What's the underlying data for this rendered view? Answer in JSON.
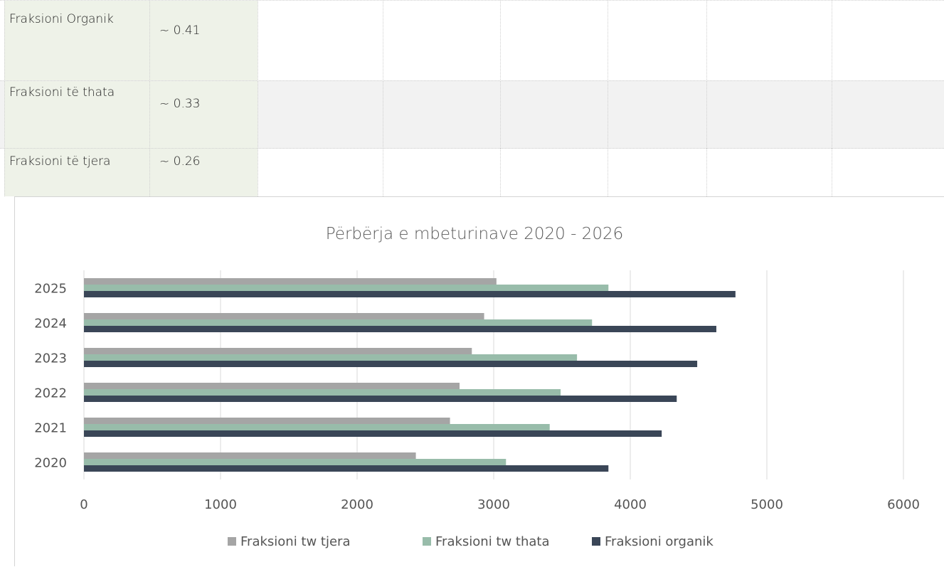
{
  "table": {
    "rows": [
      {
        "label": "Fraksioni Organik",
        "value": "~ 0.41"
      },
      {
        "label": "Fraksioni të thata",
        "value": "~ 0.33"
      },
      {
        "label": "Fraksioni të tjera",
        "value": "~ 0.26"
      }
    ]
  },
  "colors": {
    "tjera": "#a5a5a5",
    "thata": "#98bcaa",
    "organik": "#3a4657",
    "label_fill": "#eef2e8",
    "band": "#f2f2f2"
  },
  "chart_data": {
    "type": "bar",
    "orientation": "horizontal",
    "title": "Përbërja e mbeturinave 2020 - 2026",
    "categories": [
      "2020",
      "2021",
      "2022",
      "2023",
      "2024",
      "2025"
    ],
    "series": [
      {
        "name": "Fraksioni tw tjera",
        "values": [
          2430,
          2680,
          2750,
          2840,
          2930,
          3020
        ]
      },
      {
        "name": "Fraksioni tw thata",
        "values": [
          3090,
          3410,
          3490,
          3610,
          3720,
          3840
        ]
      },
      {
        "name": "Fraksioni organik",
        "values": [
          3840,
          4230,
          4340,
          4490,
          4630,
          4770
        ]
      }
    ],
    "xlim": [
      0,
      6000
    ],
    "xticks": [
      "0",
      "1000",
      "2000",
      "3000",
      "4000",
      "5000",
      "6000"
    ],
    "grid": true,
    "legend": "bottom"
  }
}
